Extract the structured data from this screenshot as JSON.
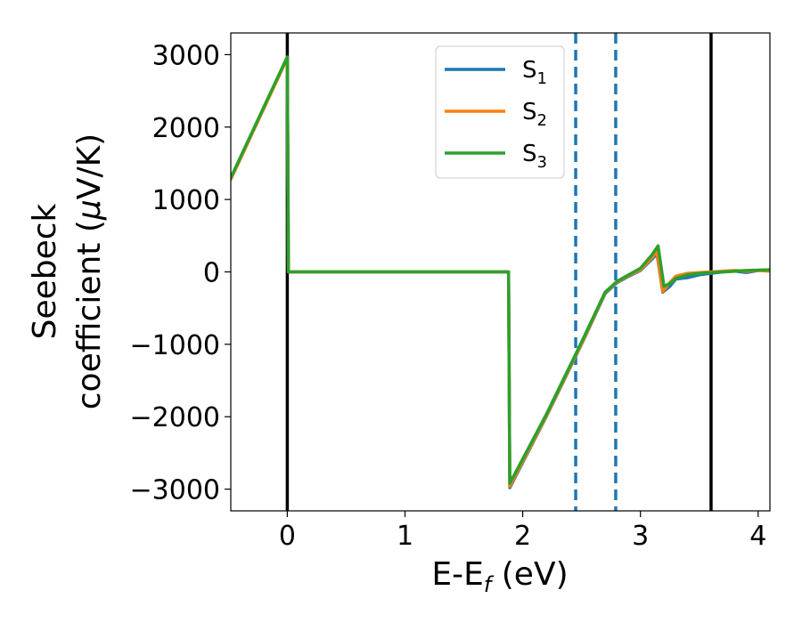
{
  "chart_data": {
    "type": "line",
    "xlabel_main": "E-E",
    "xlabel_sub": "f",
    "xlabel_unit": " (eV)",
    "ylabel_line1": "Seebeck",
    "ylabel_line2_a": "coefficient  (",
    "ylabel_mu": "μ",
    "ylabel_line2_b": "V/K)",
    "xlim": [
      -0.48,
      4.1
    ],
    "ylim": [
      -3300,
      3300
    ],
    "xticks": [
      {
        "value": 0,
        "label": "0"
      },
      {
        "value": 1,
        "label": "1"
      },
      {
        "value": 2,
        "label": "2"
      },
      {
        "value": 3,
        "label": "3"
      },
      {
        "value": 4,
        "label": "4"
      }
    ],
    "yticks": [
      {
        "value": 3000,
        "label": "3000"
      },
      {
        "value": 2000,
        "label": "2000"
      },
      {
        "value": 1000,
        "label": "1000"
      },
      {
        "value": 0,
        "label": "0"
      },
      {
        "value": -1000,
        "label": "−1000"
      },
      {
        "value": -2000,
        "label": "−2000"
      },
      {
        "value": -3000,
        "label": "−3000"
      }
    ],
    "vlines": [
      {
        "x": 0,
        "style": "solid",
        "color": "#000000"
      },
      {
        "x": 3.6,
        "style": "solid",
        "color": "#000000"
      },
      {
        "x": 2.45,
        "style": "dashed",
        "color": "#1f77b4"
      },
      {
        "x": 2.79,
        "style": "dashed",
        "color": "#1f77b4"
      }
    ],
    "legend_position": "top-center",
    "series": [
      {
        "name_main": "S",
        "name_sub": "1",
        "color": "#1f77b4",
        "points": [
          [
            -0.48,
            1280
          ],
          [
            0,
            2960
          ],
          [
            0.01,
            0
          ],
          [
            1.88,
            0
          ],
          [
            1.89,
            -2980
          ],
          [
            2.2,
            -2000
          ],
          [
            2.5,
            -1000
          ],
          [
            2.7,
            -300
          ],
          [
            2.8,
            -150
          ],
          [
            2.9,
            -60
          ],
          [
            3.0,
            20
          ],
          [
            3.1,
            180
          ],
          [
            3.14,
            250
          ],
          [
            3.19,
            -280
          ],
          [
            3.25,
            -200
          ],
          [
            3.3,
            -100
          ],
          [
            3.4,
            -80
          ],
          [
            3.5,
            -40
          ],
          [
            3.6,
            -20
          ],
          [
            3.7,
            0
          ],
          [
            3.8,
            10
          ],
          [
            3.9,
            -10
          ],
          [
            4.0,
            20
          ],
          [
            4.1,
            30
          ]
        ]
      },
      {
        "name_main": "S",
        "name_sub": "2",
        "color": "#ff7f0e",
        "points": [
          [
            -0.48,
            1280
          ],
          [
            0,
            2950
          ],
          [
            0.01,
            0
          ],
          [
            1.88,
            0
          ],
          [
            1.89,
            -2960
          ],
          [
            2.2,
            -1990
          ],
          [
            2.5,
            -990
          ],
          [
            2.7,
            -290
          ],
          [
            2.8,
            -140
          ],
          [
            2.9,
            -50
          ],
          [
            3.0,
            30
          ],
          [
            3.1,
            200
          ],
          [
            3.14,
            280
          ],
          [
            3.19,
            -270
          ],
          [
            3.25,
            -150
          ],
          [
            3.3,
            -60
          ],
          [
            3.4,
            -20
          ],
          [
            3.5,
            -10
          ],
          [
            3.6,
            0
          ],
          [
            3.7,
            10
          ],
          [
            3.8,
            20
          ],
          [
            3.9,
            10
          ],
          [
            4.0,
            20
          ],
          [
            4.1,
            10
          ]
        ]
      },
      {
        "name_main": "S",
        "name_sub": "3",
        "color": "#2ca02c",
        "points": [
          [
            -0.48,
            1300
          ],
          [
            0,
            2970
          ],
          [
            0.01,
            0
          ],
          [
            1.88,
            0
          ],
          [
            1.89,
            -2920
          ],
          [
            2.2,
            -1970
          ],
          [
            2.5,
            -970
          ],
          [
            2.7,
            -280
          ],
          [
            2.8,
            -130
          ],
          [
            2.9,
            -40
          ],
          [
            3.0,
            50
          ],
          [
            3.1,
            240
          ],
          [
            3.15,
            360
          ],
          [
            3.2,
            -200
          ],
          [
            3.25,
            -160
          ],
          [
            3.3,
            -90
          ],
          [
            3.4,
            -40
          ],
          [
            3.5,
            -20
          ],
          [
            3.6,
            -10
          ],
          [
            3.7,
            0
          ],
          [
            3.8,
            10
          ],
          [
            3.9,
            20
          ],
          [
            4.0,
            25
          ],
          [
            4.1,
            30
          ]
        ]
      }
    ]
  }
}
